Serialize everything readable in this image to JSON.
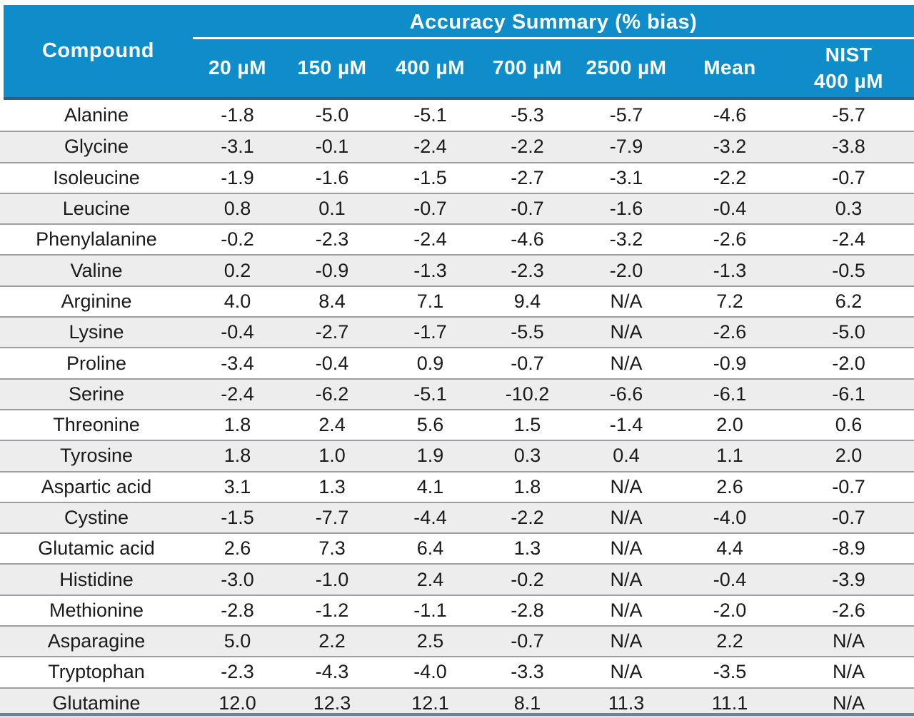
{
  "colors": {
    "header_bg": "#0e8dca",
    "header_text": "#ffffff",
    "header_dark_border": "#2b5f88",
    "header_light_strip": "#bcdcee",
    "row_alt_bg": "#ededee",
    "row_separator": "#9c9ea1",
    "body_text": "#1a1a1a",
    "bottom_border": "#6e8494"
  },
  "chart_data": {
    "type": "table",
    "title": "Accuracy Summary (% bias)",
    "compound_header": "Compound",
    "columns": [
      "20 µM",
      "150 µM",
      "400 µM",
      "700 µM",
      "2500 µM",
      "Mean",
      "NIST\n400 µM"
    ],
    "rows": [
      {
        "compound": "Alanine",
        "values": [
          "-1.8",
          "-5.0",
          "-5.1",
          "-5.3",
          "-5.7",
          "-4.6",
          "-5.7"
        ]
      },
      {
        "compound": "Glycine",
        "values": [
          "-3.1",
          "-0.1",
          "-2.4",
          "-2.2",
          "-7.9",
          "-3.2",
          "-3.8"
        ]
      },
      {
        "compound": "Isoleucine",
        "values": [
          "-1.9",
          "-1.6",
          "-1.5",
          "-2.7",
          "-3.1",
          "-2.2",
          "-0.7"
        ]
      },
      {
        "compound": "Leucine",
        "values": [
          "0.8",
          "0.1",
          "-0.7",
          "-0.7",
          "-1.6",
          "-0.4",
          "0.3"
        ]
      },
      {
        "compound": "Phenylalanine",
        "values": [
          "-0.2",
          "-2.3",
          "-2.4",
          "-4.6",
          "-3.2",
          "-2.6",
          "-2.4"
        ]
      },
      {
        "compound": "Valine",
        "values": [
          "0.2",
          "-0.9",
          "-1.3",
          "-2.3",
          "-2.0",
          "-1.3",
          "-0.5"
        ]
      },
      {
        "compound": "Arginine",
        "values": [
          "4.0",
          "8.4",
          "7.1",
          "9.4",
          "N/A",
          "7.2",
          "6.2"
        ]
      },
      {
        "compound": "Lysine",
        "values": [
          "-0.4",
          "-2.7",
          "-1.7",
          "-5.5",
          "N/A",
          "-2.6",
          "-5.0"
        ]
      },
      {
        "compound": "Proline",
        "values": [
          "-3.4",
          "-0.4",
          "0.9",
          "-0.7",
          "N/A",
          "-0.9",
          "-2.0"
        ]
      },
      {
        "compound": "Serine",
        "values": [
          "-2.4",
          "-6.2",
          "-5.1",
          "-10.2",
          "-6.6",
          "-6.1",
          "-6.1"
        ]
      },
      {
        "compound": "Threonine",
        "values": [
          "1.8",
          "2.4",
          "5.6",
          "1.5",
          "-1.4",
          "2.0",
          "0.6"
        ]
      },
      {
        "compound": "Tyrosine",
        "values": [
          "1.8",
          "1.0",
          "1.9",
          "0.3",
          "0.4",
          "1.1",
          "2.0"
        ]
      },
      {
        "compound": "Aspartic acid",
        "values": [
          "3.1",
          "1.3",
          "4.1",
          "1.8",
          "N/A",
          "2.6",
          "-0.7"
        ]
      },
      {
        "compound": "Cystine",
        "values": [
          "-1.5",
          "-7.7",
          "-4.4",
          "-2.2",
          "N/A",
          "-4.0",
          "-0.7"
        ]
      },
      {
        "compound": "Glutamic acid",
        "values": [
          "2.6",
          "7.3",
          "6.4",
          "1.3",
          "N/A",
          "4.4",
          "-8.9"
        ]
      },
      {
        "compound": "Histidine",
        "values": [
          "-3.0",
          "-1.0",
          "2.4",
          "-0.2",
          "N/A",
          "-0.4",
          "-3.9"
        ]
      },
      {
        "compound": "Methionine",
        "values": [
          "-2.8",
          "-1.2",
          "-1.1",
          "-2.8",
          "N/A",
          "-2.0",
          "-2.6"
        ]
      },
      {
        "compound": "Asparagine",
        "values": [
          "5.0",
          "2.2",
          "2.5",
          "-0.7",
          "N/A",
          "2.2",
          "N/A"
        ]
      },
      {
        "compound": "Tryptophan",
        "values": [
          "-2.3",
          "-4.3",
          "-4.0",
          "-3.3",
          "N/A",
          "-3.5",
          "N/A"
        ]
      },
      {
        "compound": "Glutamine",
        "values": [
          "12.0",
          "12.3",
          "12.1",
          "8.1",
          "11.3",
          "11.1",
          "N/A"
        ]
      }
    ]
  }
}
